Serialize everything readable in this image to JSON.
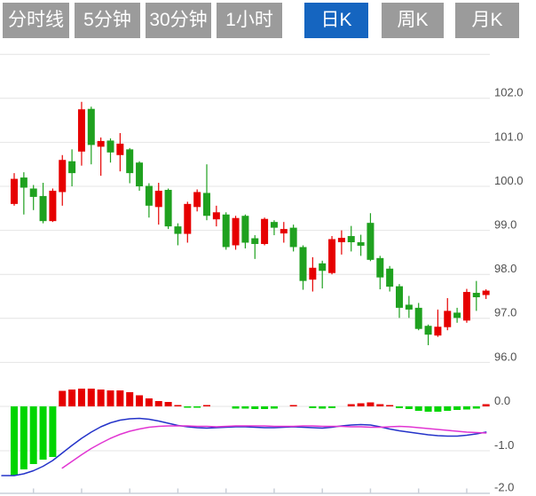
{
  "tabs": [
    {
      "label": "分时线",
      "active": false
    },
    {
      "label": "5分钟",
      "active": false
    },
    {
      "label": "30分钟",
      "active": false
    },
    {
      "label": "1小时",
      "active": false
    },
    {
      "label": "日K",
      "active": true
    },
    {
      "label": "周K",
      "active": false
    },
    {
      "label": "月K",
      "active": false
    }
  ],
  "colors": {
    "tab_bg": "#9b9b9b",
    "tab_active_bg": "#1565c0",
    "tab_text": "#ffffff",
    "candle_up": "#e60000",
    "candle_down": "#1fa11f",
    "hist_up": "#e60000",
    "hist_down": "#00d500",
    "dif_line": "#2433c9",
    "dea_line": "#e135d2",
    "grid": "#e4e4e4",
    "axis_line": "#c9cfd8",
    "axis_text": "#4f4f4f"
  },
  "chart_data": {
    "type": "candlestick",
    "title": "",
    "legend": [],
    "grid": true,
    "price_pane": {
      "ylim": [
        95.8,
        103.1
      ],
      "gridline_prices": [
        103,
        102,
        101,
        100,
        99,
        98,
        97,
        96
      ],
      "axis_labels": [
        "102.0",
        "101.0",
        "100.0",
        "99.0",
        "98.0",
        "97.0",
        "96.0"
      ],
      "axis_label_values": [
        102,
        101,
        100,
        99,
        98,
        97,
        96
      ],
      "candles": [
        {
          "o": 99.6,
          "h": 100.3,
          "l": 99.56,
          "c": 100.17
        },
        {
          "o": 100.2,
          "h": 100.32,
          "l": 99.36,
          "c": 99.97
        },
        {
          "o": 99.95,
          "h": 100.03,
          "l": 99.46,
          "c": 99.76
        },
        {
          "o": 99.78,
          "h": 100.08,
          "l": 99.16,
          "c": 99.21
        },
        {
          "o": 99.21,
          "h": 99.95,
          "l": 99.19,
          "c": 99.9
        },
        {
          "o": 99.87,
          "h": 100.71,
          "l": 99.56,
          "c": 100.6
        },
        {
          "o": 100.57,
          "h": 100.84,
          "l": 100.0,
          "c": 100.3
        },
        {
          "o": 100.79,
          "h": 101.92,
          "l": 100.47,
          "c": 101.75
        },
        {
          "o": 101.76,
          "h": 101.81,
          "l": 100.5,
          "c": 100.94
        },
        {
          "o": 100.9,
          "h": 101.11,
          "l": 100.24,
          "c": 101.03
        },
        {
          "o": 101.04,
          "h": 101.09,
          "l": 100.54,
          "c": 100.77
        },
        {
          "o": 100.71,
          "h": 101.21,
          "l": 100.34,
          "c": 100.97
        },
        {
          "o": 100.84,
          "h": 100.87,
          "l": 100.07,
          "c": 100.3
        },
        {
          "o": 100.54,
          "h": 100.57,
          "l": 99.9,
          "c": 100.0
        },
        {
          "o": 100.01,
          "h": 100.07,
          "l": 99.29,
          "c": 99.56
        },
        {
          "o": 99.53,
          "h": 100.08,
          "l": 99.13,
          "c": 99.9
        },
        {
          "o": 99.92,
          "h": 99.95,
          "l": 99.03,
          "c": 99.09
        },
        {
          "o": 99.09,
          "h": 99.16,
          "l": 98.66,
          "c": 98.92
        },
        {
          "o": 98.92,
          "h": 99.65,
          "l": 98.72,
          "c": 99.6
        },
        {
          "o": 99.53,
          "h": 99.93,
          "l": 99.43,
          "c": 99.87
        },
        {
          "o": 99.85,
          "h": 100.5,
          "l": 99.23,
          "c": 99.33
        },
        {
          "o": 99.25,
          "h": 99.56,
          "l": 99.09,
          "c": 99.41
        },
        {
          "o": 99.36,
          "h": 99.41,
          "l": 98.56,
          "c": 98.62
        },
        {
          "o": 98.66,
          "h": 99.33,
          "l": 98.56,
          "c": 99.28
        },
        {
          "o": 99.33,
          "h": 99.36,
          "l": 98.59,
          "c": 98.72
        },
        {
          "o": 98.82,
          "h": 98.89,
          "l": 98.35,
          "c": 98.69
        },
        {
          "o": 98.69,
          "h": 99.29,
          "l": 98.66,
          "c": 99.26
        },
        {
          "o": 99.19,
          "h": 99.23,
          "l": 98.89,
          "c": 99.06
        },
        {
          "o": 98.93,
          "h": 99.19,
          "l": 98.72,
          "c": 99.03
        },
        {
          "o": 99.06,
          "h": 99.13,
          "l": 98.52,
          "c": 98.62
        },
        {
          "o": 98.62,
          "h": 98.66,
          "l": 97.65,
          "c": 97.85
        },
        {
          "o": 97.88,
          "h": 98.39,
          "l": 97.61,
          "c": 98.15
        },
        {
          "o": 98.25,
          "h": 98.31,
          "l": 97.68,
          "c": 98.08
        },
        {
          "o": 98.03,
          "h": 98.87,
          "l": 98.0,
          "c": 98.8
        },
        {
          "o": 98.73,
          "h": 99.0,
          "l": 98.45,
          "c": 98.83
        },
        {
          "o": 98.87,
          "h": 99.1,
          "l": 98.52,
          "c": 98.73
        },
        {
          "o": 98.73,
          "h": 98.9,
          "l": 98.42,
          "c": 98.65
        },
        {
          "o": 99.17,
          "h": 99.39,
          "l": 98.3,
          "c": 98.33
        },
        {
          "o": 98.37,
          "h": 98.42,
          "l": 97.66,
          "c": 97.93
        },
        {
          "o": 98.13,
          "h": 98.19,
          "l": 97.61,
          "c": 97.72
        },
        {
          "o": 97.73,
          "h": 97.78,
          "l": 97.01,
          "c": 97.24
        },
        {
          "o": 97.31,
          "h": 97.51,
          "l": 97.01,
          "c": 97.2
        },
        {
          "o": 97.24,
          "h": 97.35,
          "l": 96.73,
          "c": 96.76
        },
        {
          "o": 96.83,
          "h": 96.86,
          "l": 96.39,
          "c": 96.63
        },
        {
          "o": 96.61,
          "h": 97.2,
          "l": 96.58,
          "c": 96.81
        },
        {
          "o": 96.8,
          "h": 97.46,
          "l": 96.73,
          "c": 97.17
        },
        {
          "o": 97.13,
          "h": 97.24,
          "l": 96.9,
          "c": 97.01
        },
        {
          "o": 96.95,
          "h": 97.67,
          "l": 96.9,
          "c": 97.6
        },
        {
          "o": 97.58,
          "h": 97.85,
          "l": 97.17,
          "c": 97.48
        },
        {
          "o": 97.53,
          "h": 97.66,
          "l": 97.44,
          "c": 97.63
        }
      ]
    },
    "macd_pane": {
      "ylim": [
        -2.0,
        0.45
      ],
      "gridline_values": [
        0,
        -1
      ],
      "axis_labels": [
        "0.0",
        "-1.0",
        "-2.0"
      ],
      "axis_label_values": [
        0,
        -1,
        -2
      ],
      "hist": [
        -1.55,
        -1.42,
        -1.3,
        -1.2,
        -1.14,
        0.35,
        0.38,
        0.4,
        0.4,
        0.38,
        0.36,
        0.36,
        0.32,
        0.25,
        0.18,
        0.12,
        0.1,
        0.03,
        -0.03,
        -0.03,
        0.03,
        0,
        0,
        -0.05,
        -0.05,
        -0.06,
        -0.06,
        -0.05,
        0,
        0.03,
        0,
        -0.04,
        -0.05,
        -0.04,
        0,
        0.05,
        0.07,
        0.09,
        0.05,
        0.03,
        -0.04,
        -0.06,
        -0.1,
        -0.12,
        -0.12,
        -0.1,
        -0.08,
        -0.07,
        -0.05,
        0.05
      ],
      "dif": [
        -1.56,
        -1.52,
        -1.45,
        -1.35,
        -1.22,
        -1.05,
        -0.88,
        -0.72,
        -0.58,
        -0.46,
        -0.37,
        -0.31,
        -0.28,
        -0.27,
        -0.29,
        -0.33,
        -0.38,
        -0.43,
        -0.46,
        -0.48,
        -0.49,
        -0.48,
        -0.47,
        -0.46,
        -0.46,
        -0.47,
        -0.48,
        -0.48,
        -0.47,
        -0.46,
        -0.47,
        -0.48,
        -0.49,
        -0.47,
        -0.44,
        -0.42,
        -0.41,
        -0.42,
        -0.46,
        -0.51,
        -0.55,
        -0.58,
        -0.61,
        -0.64,
        -0.66,
        -0.67,
        -0.67,
        -0.65,
        -0.62,
        -0.58
      ],
      "dea": [
        null,
        null,
        null,
        null,
        null,
        -1.39,
        -1.24,
        -1.09,
        -0.95,
        -0.83,
        -0.72,
        -0.63,
        -0.56,
        -0.51,
        -0.47,
        -0.45,
        -0.44,
        -0.44,
        -0.44,
        -0.45,
        -0.45,
        -0.46,
        -0.45,
        -0.44,
        -0.44,
        -0.44,
        -0.44,
        -0.45,
        -0.45,
        -0.45,
        -0.44,
        -0.44,
        -0.45,
        -0.45,
        -0.45,
        -0.46,
        -0.46,
        -0.47,
        -0.47,
        -0.46,
        -0.45,
        -0.46,
        -0.48,
        -0.5,
        -0.52,
        -0.54,
        -0.56,
        -0.58,
        -0.59,
        -0.6
      ]
    },
    "x_axis": {
      "tick_every_candles": 5,
      "labels_visible": false
    }
  }
}
